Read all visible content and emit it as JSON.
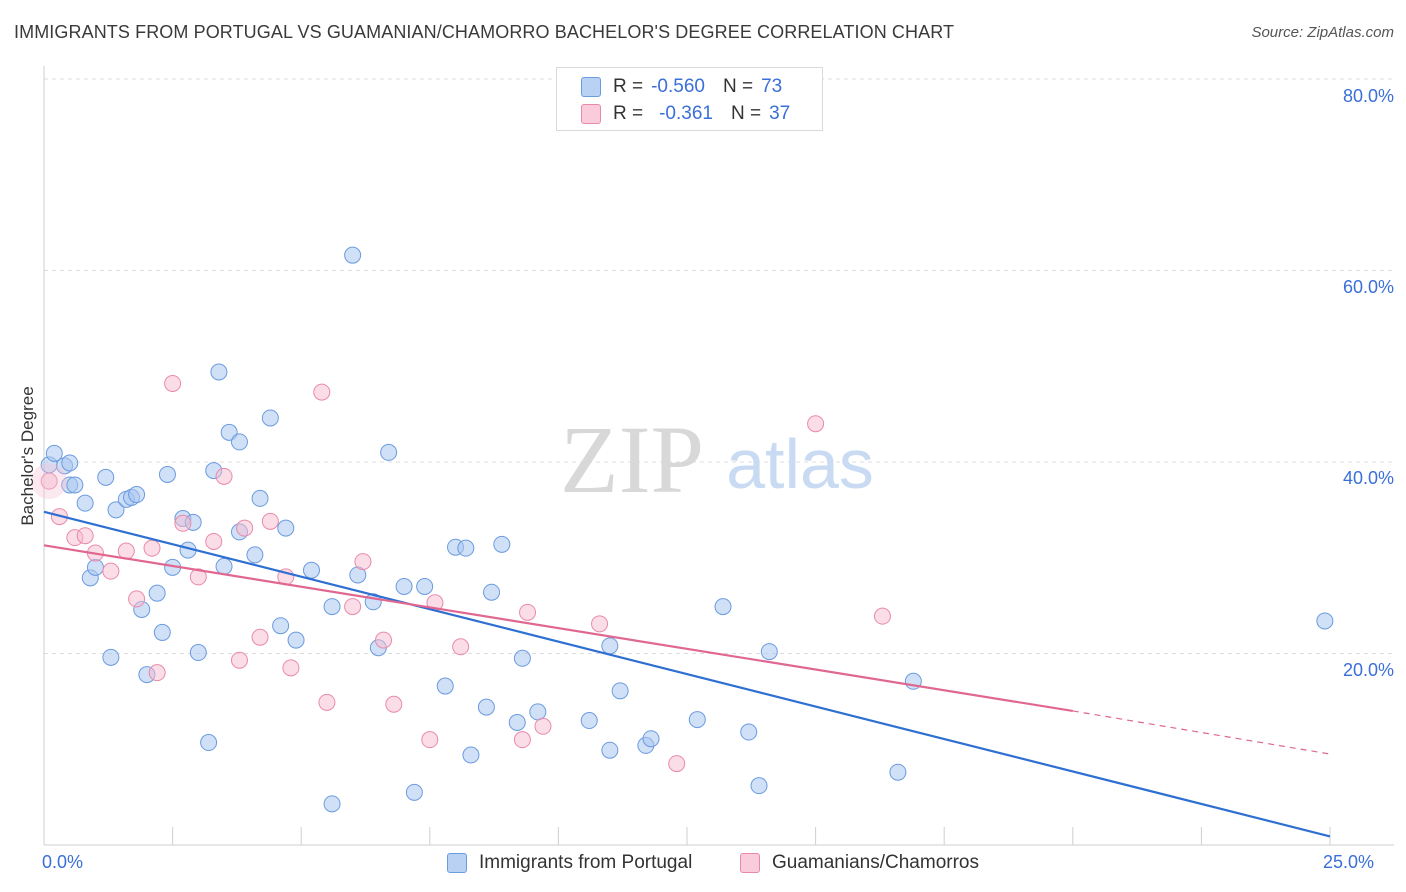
{
  "header": {
    "title": "IMMIGRANTS FROM PORTUGAL VS GUAMANIAN/CHAMORRO BACHELOR'S DEGREE CORRELATION CHART",
    "source": "Source: ZipAtlas.com"
  },
  "stats": {
    "r_label": "R =",
    "n_label": "N =",
    "series1": {
      "r": "-0.560",
      "n": "73"
    },
    "series2": {
      "r": "-0.361",
      "n": "37"
    }
  },
  "watermark": {
    "zip": "ZIP",
    "atlas": "atlas"
  },
  "colors": {
    "blue_fill": "#a9c7f0",
    "blue_stroke": "#6b9be0",
    "blue_line": "#2e6fd2",
    "pink_fill": "#f7bcd0",
    "pink_stroke": "#e98aab",
    "pink_line": "#e0678f",
    "tick_label": "#3a6fd8"
  },
  "chart_data": {
    "type": "scatter",
    "title": "IMMIGRANTS FROM PORTUGAL VS GUAMANIAN/CHAMORRO BACHELOR'S DEGREE CORRELATION CHART",
    "xlabel": "",
    "ylabel": "Bachelor's Degree",
    "xlim": [
      0,
      25
    ],
    "ylim": [
      0,
      80
    ],
    "x_tick_labels": [
      "0.0%",
      "25.0%"
    ],
    "y_ticks": [
      20,
      40,
      60,
      80
    ],
    "y_tick_labels": [
      "20.0%",
      "40.0%",
      "60.0%",
      "80.0%"
    ],
    "grid": "horizontal dashed",
    "legend_position": "bottom",
    "series": [
      {
        "name": "Immigrants from Portugal",
        "color": "#6b9be0",
        "points": [
          [
            0.1,
            39.7
          ],
          [
            0.2,
            40.9
          ],
          [
            0.4,
            39.6
          ],
          [
            0.5,
            39.9
          ],
          [
            0.5,
            37.6
          ],
          [
            0.6,
            37.6
          ],
          [
            0.8,
            35.7
          ],
          [
            0.9,
            27.9
          ],
          [
            1.0,
            29.0
          ],
          [
            1.2,
            38.4
          ],
          [
            1.3,
            19.6
          ],
          [
            1.4,
            35.0
          ],
          [
            1.6,
            36.1
          ],
          [
            1.7,
            36.3
          ],
          [
            1.8,
            36.6
          ],
          [
            1.9,
            24.6
          ],
          [
            2.0,
            17.8
          ],
          [
            2.2,
            26.3
          ],
          [
            2.3,
            22.2
          ],
          [
            2.4,
            38.7
          ],
          [
            2.5,
            29.0
          ],
          [
            2.7,
            34.1
          ],
          [
            2.8,
            30.8
          ],
          [
            2.9,
            33.7
          ],
          [
            3.0,
            20.1
          ],
          [
            3.2,
            10.7
          ],
          [
            3.3,
            39.1
          ],
          [
            3.4,
            49.4
          ],
          [
            3.5,
            29.1
          ],
          [
            3.6,
            43.1
          ],
          [
            3.8,
            42.1
          ],
          [
            3.8,
            32.7
          ],
          [
            4.1,
            30.3
          ],
          [
            4.2,
            36.2
          ],
          [
            4.4,
            44.6
          ],
          [
            4.6,
            22.9
          ],
          [
            4.7,
            33.1
          ],
          [
            4.9,
            21.4
          ],
          [
            5.2,
            28.7
          ],
          [
            5.6,
            24.9
          ],
          [
            5.6,
            4.3
          ],
          [
            6.0,
            61.6
          ],
          [
            6.1,
            28.2
          ],
          [
            6.4,
            25.4
          ],
          [
            6.5,
            20.6
          ],
          [
            6.7,
            41.0
          ],
          [
            7.0,
            27.0
          ],
          [
            7.2,
            5.5
          ],
          [
            7.4,
            27.0
          ],
          [
            7.8,
            16.6
          ],
          [
            8.0,
            31.1
          ],
          [
            8.2,
            31.0
          ],
          [
            8.3,
            9.4
          ],
          [
            8.6,
            14.4
          ],
          [
            8.7,
            26.4
          ],
          [
            8.9,
            31.4
          ],
          [
            9.2,
            12.8
          ],
          [
            9.3,
            19.5
          ],
          [
            9.6,
            13.9
          ],
          [
            10.6,
            13.0
          ],
          [
            11.0,
            9.9
          ],
          [
            11.0,
            20.8
          ],
          [
            11.2,
            16.1
          ],
          [
            11.7,
            10.4
          ],
          [
            11.8,
            11.1
          ],
          [
            12.7,
            13.1
          ],
          [
            13.2,
            24.9
          ],
          [
            13.7,
            11.8
          ],
          [
            13.9,
            6.2
          ],
          [
            14.1,
            20.2
          ],
          [
            16.6,
            7.6
          ],
          [
            16.9,
            17.1
          ],
          [
            24.9,
            23.4
          ]
        ]
      },
      {
        "name": "Guamanians/Chamorros",
        "color": "#e98aab",
        "points": [
          [
            0.1,
            38.0
          ],
          [
            0.3,
            34.3
          ],
          [
            0.6,
            32.1
          ],
          [
            0.8,
            32.3
          ],
          [
            1.0,
            30.5
          ],
          [
            1.3,
            28.6
          ],
          [
            1.6,
            30.7
          ],
          [
            1.8,
            25.7
          ],
          [
            2.1,
            31.0
          ],
          [
            2.2,
            18.0
          ],
          [
            2.5,
            48.2
          ],
          [
            2.7,
            33.6
          ],
          [
            3.0,
            28.0
          ],
          [
            3.3,
            31.7
          ],
          [
            3.5,
            38.5
          ],
          [
            3.8,
            19.3
          ],
          [
            3.9,
            33.1
          ],
          [
            4.2,
            21.7
          ],
          [
            4.4,
            33.8
          ],
          [
            4.7,
            28.0
          ],
          [
            4.8,
            18.5
          ],
          [
            5.4,
            47.3
          ],
          [
            5.5,
            14.9
          ],
          [
            6.0,
            24.9
          ],
          [
            6.2,
            29.6
          ],
          [
            6.6,
            21.4
          ],
          [
            6.8,
            14.7
          ],
          [
            7.5,
            11.0
          ],
          [
            7.6,
            25.3
          ],
          [
            8.1,
            20.7
          ],
          [
            9.3,
            11.0
          ],
          [
            9.4,
            24.3
          ],
          [
            9.7,
            12.4
          ],
          [
            10.8,
            23.1
          ],
          [
            12.3,
            8.5
          ],
          [
            15.0,
            44.0
          ],
          [
            16.3,
            23.9
          ]
        ]
      }
    ],
    "trendlines": [
      {
        "series": "Immigrants from Portugal",
        "from": [
          0,
          34.8
        ],
        "to": [
          25,
          0.9
        ],
        "style": "solid"
      },
      {
        "series": "Guamanians/Chamorros",
        "from": [
          0,
          31.3
        ],
        "to": [
          20,
          14.0
        ],
        "style": "solid"
      },
      {
        "series": "Guamanians/Chamorros",
        "from": [
          20,
          14.0
        ],
        "to": [
          25,
          9.5
        ],
        "style": "dashed"
      }
    ]
  },
  "legend": {
    "items": [
      {
        "label": "Immigrants from Portugal"
      },
      {
        "label": "Guamanians/Chamorros"
      }
    ]
  }
}
